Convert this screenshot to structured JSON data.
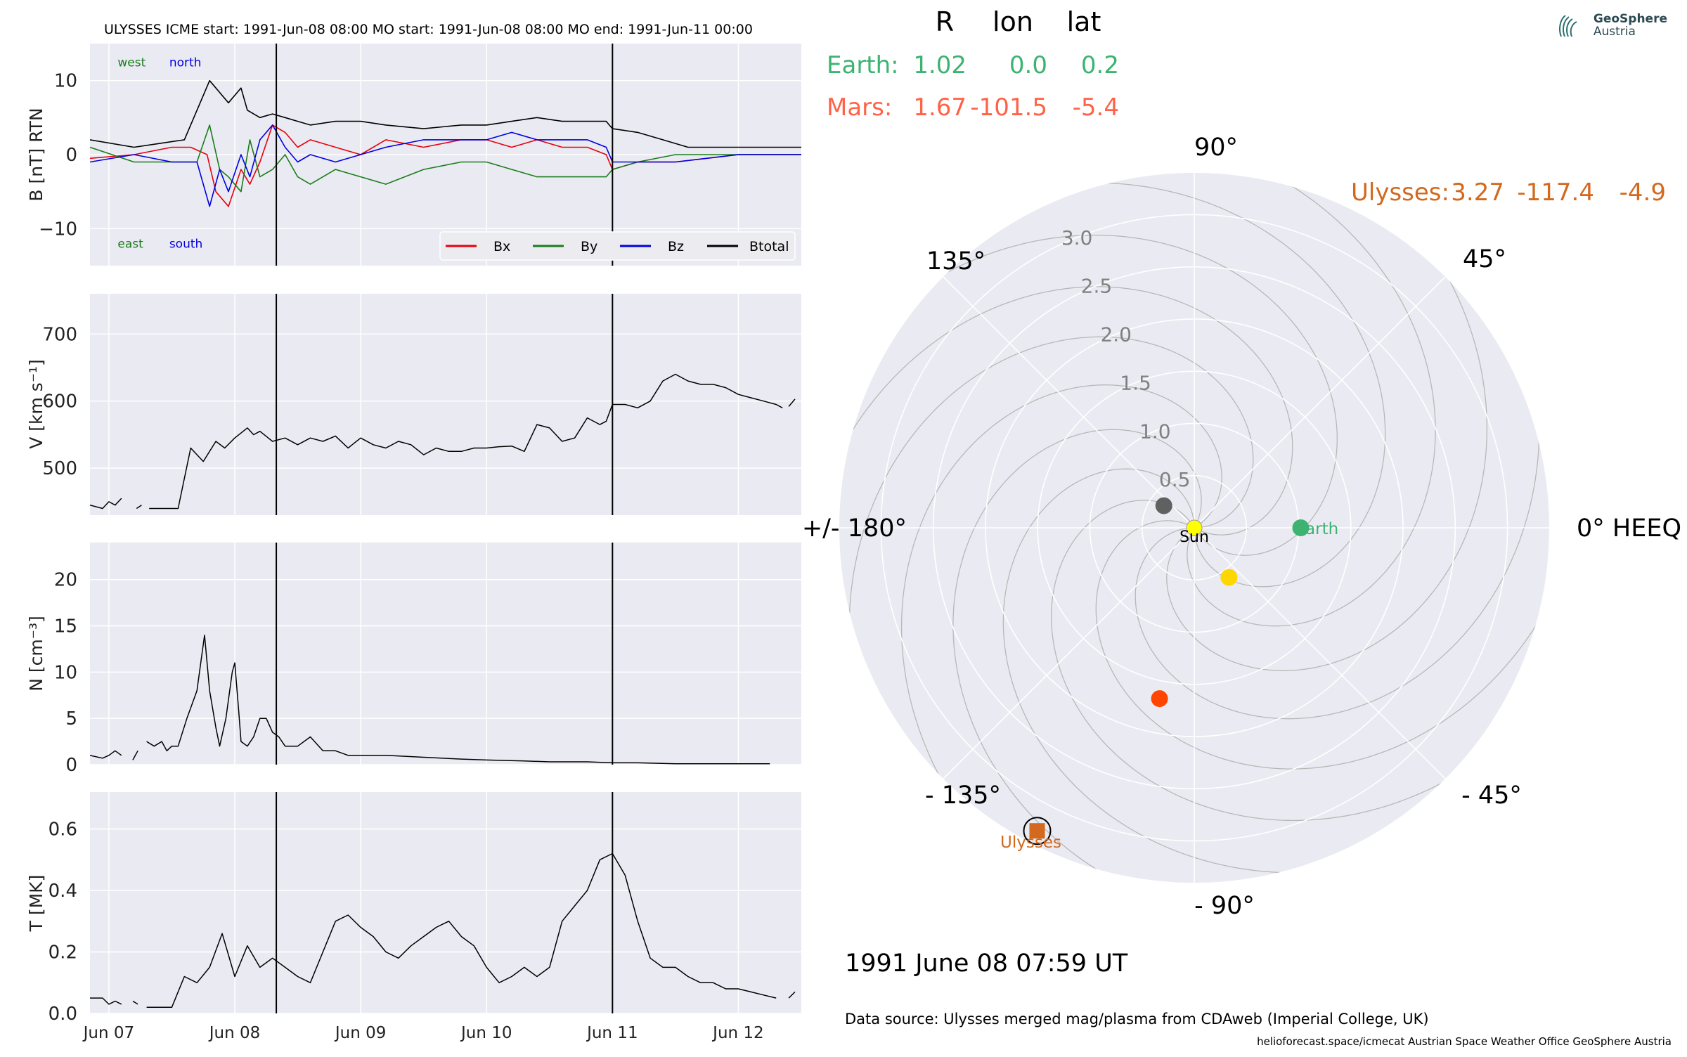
{
  "header": {
    "title": "ULYSSES    ICME start: 1991-Jun-08 08:00   MO start: 1991-Jun-08 08:00   MO end: 1991-Jun-11 00:00"
  },
  "positions_table": {
    "col_headers": [
      "R",
      "lon",
      "lat"
    ],
    "rows": [
      {
        "name": "Earth:",
        "r": "1.02",
        "lon": "0.0",
        "lat": "0.2",
        "color": "#3cb371"
      },
      {
        "name": "Mars:",
        "r": "1.67",
        "lon": "-101.5",
        "lat": "-5.4",
        "color": "#ff6347"
      },
      {
        "name": "Ulysses:",
        "r": "3.27",
        "lon": "-117.4",
        "lat": "-4.9",
        "color": "#d2691e"
      }
    ]
  },
  "logo": {
    "line1": "GeoSphere",
    "line2": "Austria"
  },
  "date_label": "1991 June 08  07:59 UT",
  "data_source": "Data source: Ulysses merged mag/plasma from CDAweb (Imperial College, UK)",
  "footer": "helioforecast.space/icmecat   Austrian Space Weather Office   GeoSphere Austria",
  "colors": {
    "bg": "#eaeaf2",
    "grid": "#ffffff",
    "bx": "#e8000b",
    "by": "#1a7d1a",
    "bz": "#0000e0",
    "bt": "#000000"
  },
  "chart_data": [
    {
      "type": "line",
      "panel": "B",
      "ylabel": "B [nT] RTN",
      "ylim": [
        -15,
        15
      ],
      "yticks": [
        -10,
        0,
        10
      ],
      "ytick_labels": [
        "−10",
        "0",
        "10"
      ],
      "xlim": [
        -0.15,
        5.5
      ],
      "xticks": [
        0,
        1,
        2,
        3,
        4,
        5
      ],
      "xtick_labels": [
        "Jun 07",
        "Jun 08",
        "Jun 09",
        "Jun 10",
        "Jun 11",
        "Jun 12"
      ],
      "annotations": [
        {
          "text": "west",
          "color": "#1a7d1a",
          "x": 0.07,
          "y": 12.5
        },
        {
          "text": "north",
          "color": "#0000e0",
          "x": 0.48,
          "y": 12.5
        },
        {
          "text": "east",
          "color": "#1a7d1a",
          "x": 0.07,
          "y": -12
        },
        {
          "text": "south",
          "color": "#0000e0",
          "x": 0.48,
          "y": -12
        }
      ],
      "legend": {
        "placement": "lower-right",
        "entries": [
          "Bx",
          "By",
          "Bz",
          "Btotal"
        ]
      },
      "series": [
        {
          "name": "Bx",
          "color": "#e8000b",
          "x": [
            -0.15,
            0.2,
            0.5,
            0.65,
            0.78,
            0.85,
            0.95,
            1.05,
            1.12,
            1.2,
            1.3,
            1.4,
            1.5,
            1.6,
            1.8,
            2.0,
            2.2,
            2.5,
            2.8,
            3.0,
            3.2,
            3.4,
            3.6,
            3.8,
            3.95,
            4.0,
            4.2,
            4.5,
            5.0,
            5.5
          ],
          "y": [
            -0.5,
            0,
            1,
            1,
            0,
            -5,
            -7,
            -2,
            -4,
            -1,
            4,
            3,
            1,
            2,
            1,
            0,
            2,
            1,
            2,
            2,
            1,
            2,
            1,
            1,
            0,
            -2,
            -1,
            -1,
            0,
            0
          ]
        },
        {
          "name": "By",
          "color": "#1a7d1a",
          "x": [
            -0.15,
            0.2,
            0.5,
            0.7,
            0.8,
            0.88,
            0.95,
            1.05,
            1.12,
            1.2,
            1.3,
            1.4,
            1.5,
            1.6,
            1.8,
            2.0,
            2.2,
            2.5,
            2.8,
            3.0,
            3.2,
            3.4,
            3.6,
            3.8,
            3.95,
            4.0,
            4.2,
            4.5,
            5.0,
            5.5
          ],
          "y": [
            1,
            -1,
            -1,
            -1,
            4,
            -2,
            -3,
            -5,
            2,
            -3,
            -2,
            0,
            -3,
            -4,
            -2,
            -3,
            -4,
            -2,
            -1,
            -1,
            -2,
            -3,
            -3,
            -3,
            -3,
            -2,
            -1,
            0,
            0,
            0
          ]
        },
        {
          "name": "Bz",
          "color": "#0000e0",
          "x": [
            -0.15,
            0.2,
            0.5,
            0.7,
            0.8,
            0.88,
            0.95,
            1.05,
            1.12,
            1.2,
            1.3,
            1.4,
            1.5,
            1.6,
            1.8,
            2.0,
            2.2,
            2.5,
            2.8,
            3.0,
            3.2,
            3.4,
            3.6,
            3.8,
            3.95,
            4.0,
            4.2,
            4.5,
            5.0,
            5.5
          ],
          "y": [
            -1,
            0,
            -1,
            -1,
            -7,
            -2,
            -5,
            0,
            -3,
            2,
            4,
            1,
            -1,
            0,
            -1,
            0,
            1,
            2,
            2,
            2,
            3,
            2,
            2,
            2,
            1,
            -1,
            -1,
            -1,
            0,
            0
          ]
        },
        {
          "name": "Btotal",
          "color": "#000000",
          "x": [
            -0.15,
            0.2,
            0.4,
            0.6,
            0.8,
            0.85,
            0.95,
            1.05,
            1.1,
            1.2,
            1.3,
            1.4,
            1.5,
            1.6,
            1.8,
            2.0,
            2.2,
            2.5,
            2.8,
            3.0,
            3.2,
            3.4,
            3.6,
            3.8,
            3.95,
            4.0,
            4.2,
            4.4,
            4.6,
            5.0,
            5.5
          ],
          "y": [
            2,
            1,
            1.5,
            2,
            10,
            9,
            7,
            9,
            6,
            5,
            5.5,
            5,
            4.5,
            4,
            4.5,
            4.5,
            4,
            3.5,
            4,
            4,
            4.5,
            5,
            4.5,
            4.5,
            4.5,
            3.5,
            3,
            2,
            1,
            1,
            1
          ]
        }
      ]
    },
    {
      "type": "line",
      "panel": "V",
      "ylabel": "V [km s⁻¹]",
      "ylim": [
        430,
        760
      ],
      "yticks": [
        500,
        600,
        700
      ],
      "ytick_labels": [
        "500",
        "600",
        "700"
      ],
      "xlim": [
        -0.15,
        5.5
      ],
      "xticks": [
        0,
        1,
        2,
        3,
        4,
        5
      ],
      "segments": [
        {
          "x": [
            -0.15,
            -0.05,
            0.0,
            0.05,
            0.1
          ],
          "y": [
            445,
            440,
            450,
            445,
            455
          ]
        },
        {
          "x": [
            0.22,
            0.26
          ],
          "y": [
            440,
            445
          ]
        },
        {
          "x": [
            0.32,
            0.4,
            0.55,
            0.65,
            0.75,
            0.85,
            0.92,
            1.0,
            1.1,
            1.15,
            1.2,
            1.3,
            1.4,
            1.5,
            1.6,
            1.7,
            1.8,
            1.9,
            2.0,
            2.1,
            2.2,
            2.3,
            2.4,
            2.5,
            2.6,
            2.7,
            2.8,
            2.9,
            3.0,
            3.1,
            3.2,
            3.3,
            3.4,
            3.5,
            3.6,
            3.7,
            3.8,
            3.9,
            3.95,
            4.0,
            4.1,
            4.2,
            4.3,
            4.4,
            4.5,
            4.6,
            4.7,
            4.8,
            4.9,
            5.0,
            5.1,
            5.2,
            5.3,
            5.35
          ],
          "y": [
            440,
            440,
            440,
            530,
            510,
            540,
            530,
            545,
            560,
            550,
            555,
            540,
            545,
            535,
            545,
            540,
            548,
            530,
            545,
            535,
            530,
            540,
            535,
            520,
            530,
            525,
            525,
            530,
            530,
            532,
            533,
            525,
            565,
            560,
            540,
            545,
            575,
            565,
            570,
            595,
            595,
            590,
            600,
            630,
            640,
            630,
            625,
            625,
            620,
            610,
            605,
            600,
            595,
            590
          ]
        },
        {
          "x": [
            5.4,
            5.45
          ],
          "y": [
            592,
            603
          ]
        }
      ]
    },
    {
      "type": "line",
      "panel": "N",
      "ylabel": "N [cm⁻³]",
      "ylim": [
        0,
        24
      ],
      "yticks": [
        0,
        5,
        10,
        15,
        20
      ],
      "ytick_labels": [
        "0",
        "5",
        "10",
        "15",
        "20"
      ],
      "xlim": [
        -0.15,
        5.5
      ],
      "xticks": [
        0,
        1,
        2,
        3,
        4,
        5
      ],
      "segments": [
        {
          "x": [
            -0.15,
            -0.05,
            0.0,
            0.05,
            0.1
          ],
          "y": [
            1,
            0.7,
            1,
            1.5,
            1
          ]
        },
        {
          "x": [
            0.19,
            0.23
          ],
          "y": [
            0.5,
            1.5
          ]
        },
        {
          "x": [
            0.3,
            0.36,
            0.42,
            0.46,
            0.5,
            0.55,
            0.62,
            0.7,
            0.76,
            0.8,
            0.85,
            0.88,
            0.93,
            0.98,
            1.0,
            1.03,
            1.05,
            1.1,
            1.15,
            1.2,
            1.25,
            1.3,
            1.35,
            1.4,
            1.5,
            1.6,
            1.7,
            1.8,
            1.9,
            2.0,
            2.2,
            2.5,
            2.8,
            3.0,
            3.3,
            3.5,
            3.8,
            4.0,
            4.2,
            4.5,
            5.0,
            5.25
          ],
          "y": [
            2.5,
            2,
            2.5,
            1.5,
            2,
            2,
            5,
            8,
            14,
            8,
            4,
            2,
            5,
            10,
            11,
            6,
            2.5,
            2,
            3,
            5,
            5,
            3.5,
            3,
            2,
            2,
            3,
            1.5,
            1.5,
            1,
            1,
            1,
            0.8,
            0.6,
            0.5,
            0.4,
            0.3,
            0.3,
            0.2,
            0.2,
            0.1,
            0.1,
            0.1
          ]
        }
      ]
    },
    {
      "type": "line",
      "panel": "T",
      "ylabel": "T [MK]",
      "ylim": [
        0,
        0.72
      ],
      "yticks": [
        0.0,
        0.2,
        0.4,
        0.6
      ],
      "ytick_labels": [
        "0.0",
        "0.2",
        "0.4",
        "0.6"
      ],
      "xlim": [
        -0.15,
        5.5
      ],
      "xticks": [
        0,
        1,
        2,
        3,
        4,
        5
      ],
      "segments": [
        {
          "x": [
            -0.15,
            -0.05,
            0.0,
            0.05,
            0.1
          ],
          "y": [
            0.05,
            0.05,
            0.03,
            0.04,
            0.03
          ]
        },
        {
          "x": [
            0.19,
            0.23
          ],
          "y": [
            0.04,
            0.03
          ]
        },
        {
          "x": [
            0.3,
            0.4,
            0.5,
            0.6,
            0.7,
            0.8,
            0.9,
            1.0,
            1.1,
            1.2,
            1.3,
            1.4,
            1.5,
            1.6,
            1.7,
            1.8,
            1.9,
            2.0,
            2.1,
            2.2,
            2.3,
            2.4,
            2.5,
            2.6,
            2.7,
            2.8,
            2.9,
            3.0,
            3.1,
            3.2,
            3.3,
            3.4,
            3.5,
            3.6,
            3.7,
            3.8,
            3.9,
            4.0,
            4.1,
            4.2,
            4.3,
            4.4,
            4.5,
            4.6,
            4.7,
            4.8,
            4.9,
            5.0,
            5.1,
            5.2,
            5.3
          ],
          "y": [
            0.02,
            0.02,
            0.02,
            0.12,
            0.1,
            0.15,
            0.26,
            0.12,
            0.22,
            0.15,
            0.18,
            0.15,
            0.12,
            0.1,
            0.2,
            0.3,
            0.32,
            0.28,
            0.25,
            0.2,
            0.18,
            0.22,
            0.25,
            0.28,
            0.3,
            0.25,
            0.22,
            0.15,
            0.1,
            0.12,
            0.15,
            0.12,
            0.15,
            0.3,
            0.35,
            0.4,
            0.5,
            0.52,
            0.45,
            0.3,
            0.18,
            0.15,
            0.15,
            0.12,
            0.1,
            0.1,
            0.08,
            0.08,
            0.07,
            0.06,
            0.05
          ]
        },
        {
          "x": [
            5.4,
            5.45
          ],
          "y": [
            0.05,
            0.07
          ]
        }
      ]
    },
    {
      "type": "polar",
      "panel": "orbit",
      "angle_labels": [
        {
          "deg": 0,
          "text": "0° HEEQ"
        },
        {
          "deg": 45,
          "text": "45°"
        },
        {
          "deg": 90,
          "text": "90°"
        },
        {
          "deg": 135,
          "text": "135°"
        },
        {
          "deg": 180,
          "text": "+/- 180°"
        },
        {
          "deg": -135,
          "text": "- 135°"
        },
        {
          "deg": -90,
          "text": "- 90°"
        },
        {
          "deg": -45,
          "text": "- 45°"
        }
      ],
      "rmax": 3.4,
      "r_ticks": [
        0.5,
        1.0,
        1.5,
        2.0,
        2.5,
        3.0
      ],
      "r_tick_labels": [
        "0.5",
        "1.0",
        "1.5",
        "2.0",
        "2.5",
        "3.0"
      ],
      "bodies": [
        {
          "name": "Sun",
          "label": "Sun",
          "r": 0,
          "lon": 0,
          "color": "#ffff00"
        },
        {
          "name": "Earth",
          "label": "Earth",
          "r": 1.02,
          "lon": 0.0,
          "color": "#3cb371"
        },
        {
          "name": "Mars",
          "label": "",
          "r": 1.67,
          "lon": -101.5,
          "color": "#ff4500"
        },
        {
          "name": "Mercury",
          "label": "",
          "r": 0.36,
          "lon": 144,
          "color": "#606060"
        },
        {
          "name": "Venus",
          "label": "",
          "r": 0.58,
          "lon": -55,
          "color": "#ffd700"
        },
        {
          "name": "Ulysses",
          "label": "Ulysses",
          "r": 3.27,
          "lon": -117.4,
          "color": "#d2691e"
        }
      ]
    }
  ]
}
